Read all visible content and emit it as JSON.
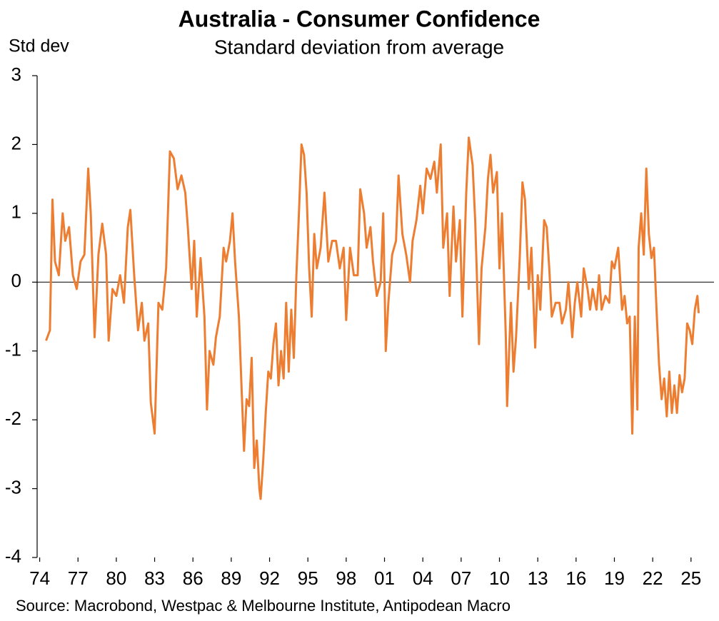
{
  "chart_data": {
    "type": "line",
    "title": "Australia - Consumer Confidence",
    "subtitle": "Standard deviation from average",
    "y_label": "Std dev",
    "source": "Source: Macrobond, Westpac & Melbourne Institute, Antipodean Macro",
    "color": "#ED7D31",
    "zero_line": true,
    "xlim": [
      1973.8,
      2026.8
    ],
    "ylim": [
      -4,
      3
    ],
    "yticks": [
      -4,
      -3,
      -2,
      -1,
      0,
      1,
      2,
      3
    ],
    "xticks": [
      {
        "value": 1974,
        "label": "74"
      },
      {
        "value": 1977,
        "label": "77"
      },
      {
        "value": 1980,
        "label": "80"
      },
      {
        "value": 1983,
        "label": "83"
      },
      {
        "value": 1986,
        "label": "86"
      },
      {
        "value": 1989,
        "label": "89"
      },
      {
        "value": 1992,
        "label": "92"
      },
      {
        "value": 1995,
        "label": "95"
      },
      {
        "value": 1998,
        "label": "98"
      },
      {
        "value": 2001,
        "label": "01"
      },
      {
        "value": 2004,
        "label": "04"
      },
      {
        "value": 2007,
        "label": "07"
      },
      {
        "value": 2010,
        "label": "10"
      },
      {
        "value": 2013,
        "label": "13"
      },
      {
        "value": 2016,
        "label": "16"
      },
      {
        "value": 2019,
        "label": "19"
      },
      {
        "value": 2022,
        "label": "22"
      },
      {
        "value": 2025,
        "label": "25"
      }
    ],
    "x": [
      1974.5,
      1974.8,
      1975.0,
      1975.2,
      1975.5,
      1975.8,
      1976.0,
      1976.3,
      1976.6,
      1976.9,
      1977.2,
      1977.5,
      1977.8,
      1978.0,
      1978.3,
      1978.6,
      1978.9,
      1979.2,
      1979.4,
      1979.7,
      1980.0,
      1980.3,
      1980.6,
      1980.9,
      1981.1,
      1981.4,
      1981.7,
      1982.0,
      1982.2,
      1982.5,
      1982.7,
      1983.0,
      1983.3,
      1983.6,
      1983.9,
      1984.2,
      1984.5,
      1984.8,
      1985.1,
      1985.4,
      1985.6,
      1985.9,
      1986.1,
      1986.3,
      1986.6,
      1986.9,
      1987.1,
      1987.3,
      1987.6,
      1987.8,
      1988.1,
      1988.4,
      1988.6,
      1988.9,
      1989.1,
      1989.3,
      1989.6,
      1989.8,
      1990.0,
      1990.2,
      1990.4,
      1990.6,
      1990.8,
      1991.0,
      1991.2,
      1991.3,
      1991.5,
      1991.7,
      1991.9,
      1992.1,
      1992.3,
      1992.5,
      1992.7,
      1992.9,
      1993.1,
      1993.3,
      1993.5,
      1993.7,
      1993.9,
      1994.1,
      1994.3,
      1994.5,
      1994.7,
      1994.9,
      1995.1,
      1995.3,
      1995.5,
      1995.7,
      1996.0,
      1996.3,
      1996.6,
      1996.9,
      1997.2,
      1997.5,
      1997.8,
      1998.0,
      1998.3,
      1998.6,
      1998.9,
      1999.1,
      1999.4,
      1999.6,
      1999.9,
      2000.1,
      2000.4,
      2000.7,
      2000.9,
      2001.1,
      2001.3,
      2001.6,
      2001.9,
      2002.1,
      2002.4,
      2002.7,
      2003.0,
      2003.2,
      2003.5,
      2003.8,
      2004.0,
      2004.3,
      2004.6,
      2004.9,
      2005.1,
      2005.4,
      2005.6,
      2005.9,
      2006.1,
      2006.4,
      2006.6,
      2006.9,
      2007.1,
      2007.4,
      2007.6,
      2007.9,
      2008.1,
      2008.4,
      2008.6,
      2008.9,
      2009.1,
      2009.3,
      2009.5,
      2009.8,
      2010.0,
      2010.2,
      2010.5,
      2010.6,
      2010.9,
      2011.1,
      2011.3,
      2011.6,
      2011.8,
      2012.0,
      2012.3,
      2012.5,
      2012.8,
      2013.0,
      2013.2,
      2013.5,
      2013.7,
      2013.9,
      2014.1,
      2014.4,
      2014.7,
      2014.9,
      2015.2,
      2015.4,
      2015.7,
      2015.9,
      2016.1,
      2016.4,
      2016.6,
      2016.9,
      2017.1,
      2017.3,
      2017.6,
      2017.8,
      2018.0,
      2018.3,
      2018.6,
      2018.8,
      2019.0,
      2019.3,
      2019.6,
      2019.8,
      2020.0,
      2020.2,
      2020.4,
      2020.6,
      2020.8,
      2020.9,
      2021.1,
      2021.3,
      2021.5,
      2021.7,
      2021.9,
      2022.1,
      2022.3,
      2022.5,
      2022.7,
      2022.9,
      2023.1,
      2023.3,
      2023.5,
      2023.7,
      2023.9,
      2024.1,
      2024.3,
      2024.5,
      2024.7,
      2024.9,
      2025.1,
      2025.3,
      2025.5,
      2025.6
    ],
    "values": [
      -0.85,
      -0.7,
      1.2,
      0.3,
      0.1,
      1.0,
      0.6,
      0.8,
      0.1,
      -0.1,
      0.3,
      0.4,
      1.65,
      1.0,
      -0.8,
      0.4,
      0.85,
      0.4,
      -0.85,
      -0.1,
      -0.2,
      0.1,
      -0.3,
      0.8,
      1.05,
      0.1,
      -0.7,
      -0.3,
      -0.85,
      -0.6,
      -1.75,
      -2.2,
      -0.3,
      -0.4,
      0.2,
      1.9,
      1.8,
      1.35,
      1.55,
      1.3,
      0.8,
      -0.1,
      0.6,
      -0.5,
      0.35,
      -0.5,
      -1.85,
      -1.0,
      -1.2,
      -0.8,
      -0.5,
      0.5,
      0.3,
      0.6,
      1.0,
      0.3,
      -0.5,
      -1.5,
      -2.45,
      -1.7,
      -1.8,
      -1.1,
      -2.7,
      -2.3,
      -3.0,
      -3.15,
      -2.6,
      -1.9,
      -1.3,
      -1.4,
      -0.9,
      -0.6,
      -1.5,
      -1.0,
      -1.4,
      -0.3,
      -1.3,
      -0.4,
      -1.1,
      0.1,
      1.0,
      2.0,
      1.85,
      1.3,
      0.2,
      -0.5,
      0.7,
      0.2,
      0.5,
      1.3,
      0.3,
      0.6,
      0.6,
      0.2,
      0.5,
      -0.55,
      0.5,
      0.1,
      0.1,
      1.35,
      1.0,
      0.5,
      0.8,
      0.3,
      -0.2,
      0.0,
      1.0,
      -1.0,
      -0.3,
      0.4,
      0.6,
      1.55,
      0.7,
      0.4,
      0.0,
      0.6,
      0.9,
      1.4,
      1.0,
      1.65,
      1.5,
      1.75,
      1.3,
      2.0,
      0.5,
      1.0,
      -0.2,
      1.1,
      0.3,
      0.9,
      -0.5,
      1.3,
      2.1,
      1.7,
      0.9,
      -0.9,
      0.2,
      0.8,
      1.5,
      1.85,
      1.3,
      1.6,
      0.2,
      1.0,
      -0.8,
      -1.8,
      -0.3,
      -1.3,
      -0.8,
      0.4,
      1.45,
      1.2,
      -0.1,
      0.5,
      -0.95,
      0.1,
      -0.4,
      0.9,
      0.8,
      0.2,
      -0.5,
      -0.3,
      -0.3,
      -0.6,
      -0.4,
      0.0,
      -0.8,
      -0.3,
      0.0,
      -0.5,
      0.2,
      -0.1,
      -0.4,
      -0.1,
      -0.4,
      0.1,
      -0.4,
      -0.2,
      -0.3,
      0.3,
      0.2,
      0.5,
      -0.4,
      -0.2,
      -0.6,
      -0.5,
      -2.2,
      -0.5,
      -1.85,
      0.5,
      1.0,
      0.4,
      1.65,
      0.7,
      0.35,
      0.5,
      -0.4,
      -1.2,
      -1.7,
      -1.4,
      -1.95,
      -1.3,
      -1.9,
      -1.5,
      -1.9,
      -1.35,
      -1.6,
      -1.4,
      -0.6,
      -0.7,
      -0.9,
      -0.4,
      -0.2,
      -0.45
    ]
  }
}
